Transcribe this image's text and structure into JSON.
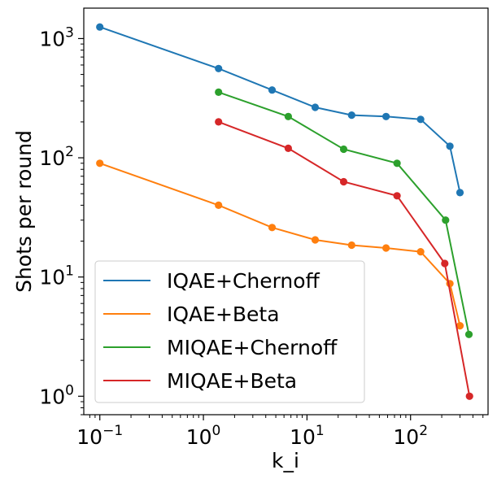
{
  "chart_data": {
    "type": "line",
    "title": "",
    "xlabel": "k_i",
    "ylabel": "Shots per round",
    "xscale": "log",
    "yscale": "log",
    "xlim": [
      0.07,
      560
    ],
    "ylim": [
      0.7,
      1800
    ],
    "grid": false,
    "legend_position": "lower-left",
    "x_ticks": [
      {
        "value": 0.1,
        "mantissa": "10",
        "exp": "−1"
      },
      {
        "value": 1,
        "mantissa": "10",
        "exp": "0"
      },
      {
        "value": 10,
        "mantissa": "10",
        "exp": "1"
      },
      {
        "value": 100,
        "mantissa": "10",
        "exp": "2"
      }
    ],
    "y_ticks": [
      {
        "value": 1,
        "mantissa": "10",
        "exp": "0"
      },
      {
        "value": 10,
        "mantissa": "10",
        "exp": "1"
      },
      {
        "value": 100,
        "mantissa": "10",
        "exp": "2"
      },
      {
        "value": 1000,
        "mantissa": "10",
        "exp": "3"
      }
    ],
    "series": [
      {
        "name": "IQAE+Chernoff",
        "color": "#1f77b4",
        "x": [
          0.1,
          1.4,
          4.6,
          12,
          27,
          58,
          125,
          240,
          300
        ],
        "y": [
          1250,
          560,
          370,
          265,
          228,
          222,
          210,
          125,
          51
        ]
      },
      {
        "name": "IQAE+Beta",
        "color": "#ff7f0e",
        "x": [
          0.1,
          1.4,
          4.6,
          12,
          27,
          58,
          125,
          240,
          300
        ],
        "y": [
          90,
          40,
          26,
          20.5,
          18.5,
          17.5,
          16.3,
          8.8,
          3.9
        ]
      },
      {
        "name": "MIQAE+Chernoff",
        "color": "#2ca02c",
        "x": [
          1.4,
          6.6,
          22.6,
          74,
          218,
          366
        ],
        "y": [
          355,
          222,
          118,
          90,
          30,
          3.3
        ]
      },
      {
        "name": "MIQAE+Beta",
        "color": "#d62728",
        "x": [
          1.4,
          6.6,
          22.6,
          74,
          214,
          371
        ],
        "y": [
          200,
          120,
          63,
          48,
          13,
          1
        ]
      }
    ]
  }
}
